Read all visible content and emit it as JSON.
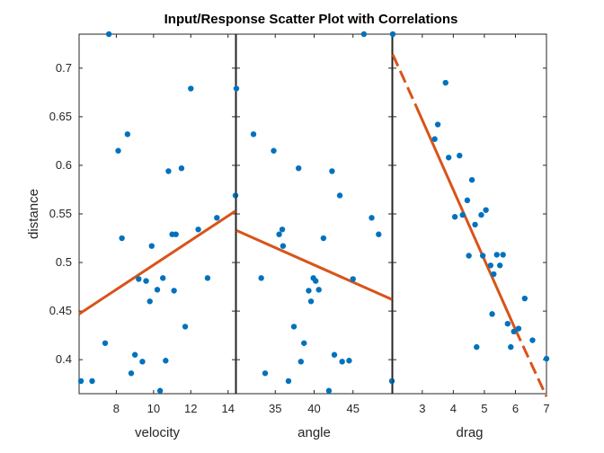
{
  "colors": {
    "points": "#0072BD",
    "fit": "#D95319",
    "axes": "#262626"
  },
  "chart_data": {
    "type": "scatter",
    "title": "Input/Response Scatter Plot with Correlations",
    "ylabel": "distance",
    "ylim": [
      0.365,
      0.735
    ],
    "yticks": [
      0.4,
      0.45,
      0.5,
      0.55,
      0.6,
      0.65,
      0.7
    ],
    "ytick_labels": [
      "0.4",
      "0.45",
      "0.5",
      "0.55",
      "0.6",
      "0.65",
      "0.7"
    ],
    "panels": [
      {
        "xlabel": "velocity",
        "xlim": [
          6,
          14.4
        ],
        "xticks": [
          8,
          10,
          12,
          14
        ],
        "xtick_labels": [
          "8",
          "10",
          "12",
          "14"
        ],
        "fit": [
          [
            6,
            0.447
          ],
          [
            14.4,
            0.553
          ]
        ],
        "fit_extrapolated": [],
        "points": [
          [
            7.6,
            0.735
          ],
          [
            6.1,
            0.378
          ],
          [
            6.7,
            0.378
          ],
          [
            7.4,
            0.417
          ],
          [
            8.1,
            0.615
          ],
          [
            8.3,
            0.525
          ],
          [
            8.6,
            0.632
          ],
          [
            8.8,
            0.386
          ],
          [
            9.0,
            0.405
          ],
          [
            9.2,
            0.483
          ],
          [
            9.4,
            0.398
          ],
          [
            9.6,
            0.481
          ],
          [
            9.8,
            0.46
          ],
          [
            9.9,
            0.517
          ],
          [
            10.2,
            0.472
          ],
          [
            10.35,
            0.368
          ],
          [
            10.5,
            0.484
          ],
          [
            10.65,
            0.399
          ],
          [
            10.8,
            0.594
          ],
          [
            11.0,
            0.529
          ],
          [
            11.1,
            0.471
          ],
          [
            11.2,
            0.529
          ],
          [
            11.5,
            0.597
          ],
          [
            11.7,
            0.434
          ],
          [
            12.0,
            0.679
          ],
          [
            12.4,
            0.534
          ],
          [
            12.9,
            0.484
          ],
          [
            13.4,
            0.546
          ],
          [
            14.4,
            0.569
          ]
        ]
      },
      {
        "xlabel": "angle",
        "xlim": [
          30,
          50
        ],
        "xticks": [
          35,
          40,
          45
        ],
        "xtick_labels": [
          "35",
          "40",
          "45"
        ],
        "fit": [
          [
            30,
            0.533
          ],
          [
            50,
            0.462
          ]
        ],
        "fit_extrapolated": [],
        "points": [
          [
            30,
            0.679
          ],
          [
            32.2,
            0.632
          ],
          [
            33.2,
            0.484
          ],
          [
            33.7,
            0.386
          ],
          [
            34.8,
            0.615
          ],
          [
            35.5,
            0.529
          ],
          [
            35.9,
            0.534
          ],
          [
            36.0,
            0.517
          ],
          [
            36.7,
            0.378
          ],
          [
            37.4,
            0.434
          ],
          [
            38.0,
            0.597
          ],
          [
            38.3,
            0.398
          ],
          [
            38.7,
            0.417
          ],
          [
            39.3,
            0.471
          ],
          [
            39.6,
            0.46
          ],
          [
            39.9,
            0.484
          ],
          [
            40.2,
            0.481
          ],
          [
            40.6,
            0.472
          ],
          [
            41.2,
            0.525
          ],
          [
            41.9,
            0.368
          ],
          [
            42.3,
            0.594
          ],
          [
            42.6,
            0.405
          ],
          [
            43.3,
            0.569
          ],
          [
            43.6,
            0.398
          ],
          [
            44.5,
            0.399
          ],
          [
            45.0,
            0.483
          ],
          [
            46.4,
            0.735
          ],
          [
            47.4,
            0.546
          ],
          [
            48.3,
            0.529
          ],
          [
            50.0,
            0.378
          ]
        ]
      },
      {
        "xlabel": "drag",
        "xlim": [
          2.05,
          7
        ],
        "xticks": [
          3,
          4,
          5,
          6,
          7
        ],
        "xtick_labels": [
          "3",
          "4",
          "5",
          "6",
          "7"
        ],
        "fit": [
          [
            2.05,
            0.714
          ],
          [
            6.0,
            0.431
          ]
        ],
        "fit_extrapolated": [
          [
            2.05,
            0.714
          ],
          [
            2.8,
            0.661
          ],
          [
            6.0,
            0.431
          ],
          [
            7.0,
            0.362
          ]
        ],
        "points": [
          [
            2.05,
            0.735
          ],
          [
            3.4,
            0.627
          ],
          [
            3.5,
            0.642
          ],
          [
            3.75,
            0.685
          ],
          [
            3.85,
            0.608
          ],
          [
            4.05,
            0.547
          ],
          [
            4.2,
            0.61
          ],
          [
            4.3,
            0.549
          ],
          [
            4.45,
            0.564
          ],
          [
            4.5,
            0.507
          ],
          [
            4.6,
            0.585
          ],
          [
            4.7,
            0.539
          ],
          [
            4.75,
            0.413
          ],
          [
            4.9,
            0.549
          ],
          [
            4.95,
            0.507
          ],
          [
            5.05,
            0.554
          ],
          [
            5.2,
            0.497
          ],
          [
            5.25,
            0.447
          ],
          [
            5.3,
            0.488
          ],
          [
            5.4,
            0.508
          ],
          [
            5.5,
            0.497
          ],
          [
            5.6,
            0.508
          ],
          [
            5.75,
            0.437
          ],
          [
            5.85,
            0.413
          ],
          [
            5.95,
            0.429
          ],
          [
            6.1,
            0.432
          ],
          [
            6.3,
            0.463
          ],
          [
            6.55,
            0.42
          ],
          [
            7.0,
            0.401
          ]
        ]
      }
    ]
  }
}
